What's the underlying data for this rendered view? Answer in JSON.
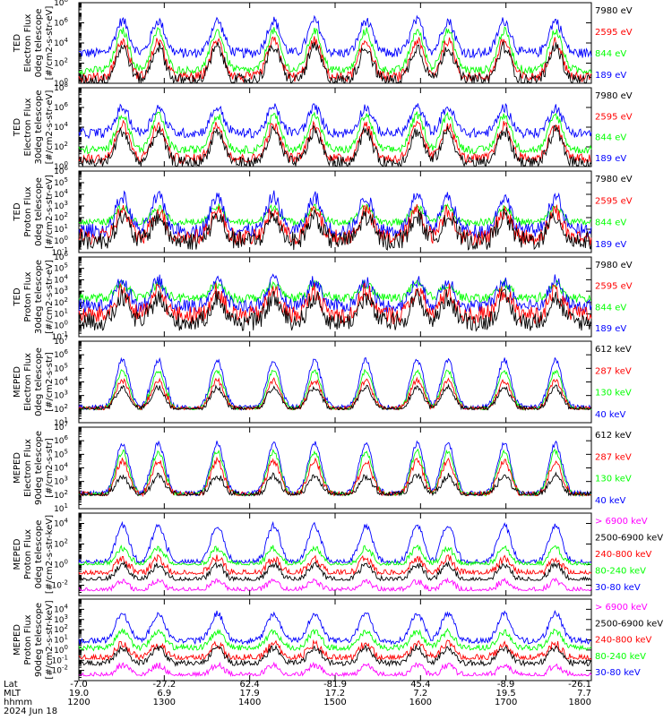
{
  "colors": {
    "blue": "#0000ff",
    "red": "#ff0000",
    "green": "#00ff00",
    "black": "#000000",
    "magenta": "#ff00ff"
  },
  "chart_data": [
    {
      "type": "line",
      "ylabel": [
        "TED",
        "Electron Flux",
        "0deg telescope",
        "[#/cm2-s-str-eV]"
      ],
      "log_scale": true,
      "ylim_exp": [
        0,
        8
      ],
      "tick_exps": [
        0,
        2,
        4,
        6,
        8
      ],
      "legend": [
        {
          "label": "7980 eV",
          "color": "black"
        },
        {
          "label": "2595 eV",
          "color": "red"
        },
        {
          "label": "844 eV",
          "color": "green"
        },
        {
          "label": "189 eV",
          "color": "blue"
        }
      ],
      "series": [
        {
          "color": "blue",
          "base": 3.0,
          "peak": 6.2,
          "noise": 0.5,
          "floor": 0
        },
        {
          "color": "green",
          "base": 1.3,
          "peak": 5.2,
          "noise": 0.4,
          "floor": 0
        },
        {
          "color": "red",
          "base": 0.6,
          "peak": 4.2,
          "noise": 0.5,
          "floor": 0
        },
        {
          "color": "black",
          "base": 0.3,
          "peak": 3.6,
          "noise": 0.6,
          "floor": 0
        }
      ]
    },
    {
      "type": "line",
      "ylabel": [
        "TED",
        "Electron Flux",
        "30deg telescope",
        "[#/cm2-s-str-eV]"
      ],
      "log_scale": true,
      "ylim_exp": [
        0,
        8
      ],
      "tick_exps": [
        0,
        2,
        4,
        6,
        8
      ],
      "legend": [
        {
          "label": "7980 eV",
          "color": "black"
        },
        {
          "label": "2595 eV",
          "color": "red"
        },
        {
          "label": "844 eV",
          "color": "green"
        },
        {
          "label": "189 eV",
          "color": "blue"
        }
      ],
      "series": [
        {
          "color": "blue",
          "base": 3.4,
          "peak": 6.0,
          "noise": 0.5,
          "floor": 0
        },
        {
          "color": "green",
          "base": 1.7,
          "peak": 5.2,
          "noise": 0.4,
          "floor": 0
        },
        {
          "color": "red",
          "base": 0.8,
          "peak": 4.2,
          "noise": 0.5,
          "floor": 0
        },
        {
          "color": "black",
          "base": 0.4,
          "peak": 3.6,
          "noise": 0.6,
          "floor": 0
        }
      ]
    },
    {
      "type": "line",
      "ylabel": [
        "TED",
        "Proton Flux",
        "0deg telescope",
        "[#/cm2-s-str-eV]"
      ],
      "log_scale": true,
      "ylim_exp": [
        -1,
        6
      ],
      "tick_exps": [
        -1,
        0,
        1,
        2,
        3,
        4,
        5,
        6
      ],
      "legend": [
        {
          "label": "7980 eV",
          "color": "black"
        },
        {
          "label": "2595 eV",
          "color": "red"
        },
        {
          "label": "844 eV",
          "color": "green"
        },
        {
          "label": "189 eV",
          "color": "blue"
        }
      ],
      "series": [
        {
          "color": "green",
          "base": 1.6,
          "peak": 2.9,
          "noise": 0.3,
          "floor": 0.9
        },
        {
          "color": "blue",
          "base": 0.9,
          "peak": 3.8,
          "noise": 0.6,
          "floor": 0.2
        },
        {
          "color": "red",
          "base": 0.3,
          "peak": 2.6,
          "noise": 0.7,
          "floor": -0.5
        },
        {
          "color": "black",
          "base": 0.0,
          "peak": 2.1,
          "noise": 0.8,
          "floor": -0.9
        }
      ]
    },
    {
      "type": "line",
      "ylabel": [
        "TED",
        "Proton Flux",
        "30deg telescope",
        "[#/cm2-s-str-eV]"
      ],
      "log_scale": true,
      "ylim_exp": [
        -1,
        6
      ],
      "tick_exps": [
        -1,
        0,
        1,
        2,
        3,
        4,
        5,
        6
      ],
      "legend": [
        {
          "label": "7980 eV",
          "color": "black"
        },
        {
          "label": "2595 eV",
          "color": "red"
        },
        {
          "label": "844 eV",
          "color": "green"
        },
        {
          "label": "189 eV",
          "color": "blue"
        }
      ],
      "series": [
        {
          "color": "green",
          "base": 2.4,
          "peak": 3.6,
          "noise": 0.4,
          "floor": 1.0
        },
        {
          "color": "blue",
          "base": 1.7,
          "peak": 3.9,
          "noise": 0.6,
          "floor": 0.5
        },
        {
          "color": "red",
          "base": 0.9,
          "peak": 3.0,
          "noise": 0.8,
          "floor": -0.4
        },
        {
          "color": "black",
          "base": 0.3,
          "peak": 2.4,
          "noise": 0.8,
          "floor": -0.9
        }
      ]
    },
    {
      "type": "line",
      "ylabel": [
        "MEPED",
        "Electron Flux",
        "0deg telescope",
        "[#/cm2-s-str]"
      ],
      "log_scale": true,
      "ylim_exp": [
        1,
        7
      ],
      "tick_exps": [
        1,
        2,
        3,
        4,
        5,
        6,
        7
      ],
      "legend": [
        {
          "label": "612 keV",
          "color": "black"
        },
        {
          "label": "287 keV",
          "color": "red"
        },
        {
          "label": "130 keV",
          "color": "green"
        },
        {
          "label": "40 keV",
          "color": "blue"
        }
      ],
      "series": [
        {
          "color": "blue",
          "base": 2.1,
          "peak": 5.6,
          "noise": 0.2,
          "floor": 2.0
        },
        {
          "color": "green",
          "base": 2.0,
          "peak": 4.8,
          "noise": 0.15,
          "floor": 2.0
        },
        {
          "color": "red",
          "base": 2.0,
          "peak": 4.1,
          "noise": 0.2,
          "floor": 2.0
        },
        {
          "color": "black",
          "base": 2.0,
          "peak": 3.6,
          "noise": 0.2,
          "floor": 2.0
        }
      ]
    },
    {
      "type": "line",
      "ylabel": [
        "MEPED",
        "Electron Flux",
        "90deg telescope",
        "[#/cm2-s-str]"
      ],
      "log_scale": true,
      "ylim_exp": [
        1,
        7
      ],
      "tick_exps": [
        1,
        2,
        3,
        4,
        5,
        6,
        7
      ],
      "legend": [
        {
          "label": "612 keV",
          "color": "black"
        },
        {
          "label": "287 keV",
          "color": "red"
        },
        {
          "label": "130 keV",
          "color": "green"
        },
        {
          "label": "40 keV",
          "color": "blue"
        }
      ],
      "series": [
        {
          "color": "blue",
          "base": 2.1,
          "peak": 5.8,
          "noise": 0.2,
          "floor": 2.0
        },
        {
          "color": "green",
          "base": 2.0,
          "peak": 5.2,
          "noise": 0.2,
          "floor": 2.0
        },
        {
          "color": "red",
          "base": 2.0,
          "peak": 4.5,
          "noise": 0.25,
          "floor": 2.0
        },
        {
          "color": "black",
          "base": 2.0,
          "peak": 3.4,
          "noise": 0.25,
          "floor": 2.0
        }
      ]
    },
    {
      "type": "line",
      "ylabel": [
        "MEPED",
        "Proton Flux",
        "0deg telescope",
        "[#/cm2-s-str-keV]"
      ],
      "log_scale": true,
      "ylim_exp": [
        -3,
        5
      ],
      "tick_exps": [
        -2,
        0,
        2,
        4
      ],
      "legend": [
        {
          "label": "> 6900 keV",
          "color": "magenta"
        },
        {
          "label": "2500-6900 keV",
          "color": "black"
        },
        {
          "label": "240-800 keV",
          "color": "red"
        },
        {
          "label": "80-240 keV",
          "color": "green"
        },
        {
          "label": "30-80 keV",
          "color": "blue"
        }
      ],
      "series": [
        {
          "color": "blue",
          "base": 0.2,
          "peak": 3.8,
          "noise": 0.3,
          "floor": 0.2
        },
        {
          "color": "green",
          "base": 0.0,
          "peak": 1.6,
          "noise": 0.3,
          "floor": 0.0
        },
        {
          "color": "red",
          "base": -0.9,
          "peak": 0.6,
          "noise": 0.4,
          "floor": -0.9
        },
        {
          "color": "black",
          "base": -1.5,
          "peak": 0.0,
          "noise": 0.3,
          "floor": -1.5
        },
        {
          "color": "magenta",
          "base": -2.5,
          "peak": -1.6,
          "noise": 0.3,
          "floor": -2.5
        }
      ]
    },
    {
      "type": "line",
      "ylabel": [
        "MEPED",
        "Proton Flux",
        "90deg telescope",
        "[#/cm2-s-str-keV]"
      ],
      "log_scale": true,
      "ylim_exp": [
        -3,
        5
      ],
      "tick_exps": [
        -2,
        -1,
        0,
        1,
        2,
        3,
        4
      ],
      "legend": [
        {
          "label": "> 6900 keV",
          "color": "magenta"
        },
        {
          "label": "2500-6900 keV",
          "color": "black"
        },
        {
          "label": "240-800 keV",
          "color": "red"
        },
        {
          "label": "80-240 keV",
          "color": "green"
        },
        {
          "label": "30-80 keV",
          "color": "blue"
        }
      ],
      "series": [
        {
          "color": "blue",
          "base": 0.9,
          "peak": 3.6,
          "noise": 0.3,
          "floor": 0.5
        },
        {
          "color": "green",
          "base": 0.2,
          "peak": 1.8,
          "noise": 0.3,
          "floor": 0.0
        },
        {
          "color": "red",
          "base": -0.8,
          "peak": 0.6,
          "noise": 0.4,
          "floor": -0.9
        },
        {
          "color": "black",
          "base": -1.3,
          "peak": 0.2,
          "noise": 0.3,
          "floor": -1.5
        },
        {
          "color": "magenta",
          "base": -2.5,
          "peak": -1.5,
          "noise": 0.3,
          "floor": -2.5
        }
      ]
    }
  ],
  "x_axis": {
    "row_labels": [
      "Lat",
      "MLT",
      "hhmm"
    ],
    "date": "2024 Jun 18",
    "xlim_hhmm": [
      "1200",
      "1800"
    ],
    "ticks": [
      {
        "lat": "-7.0",
        "mlt": "19.0",
        "hhmm": "1200"
      },
      {
        "lat": "-27.2",
        "mlt": "6.9",
        "hhmm": "1300"
      },
      {
        "lat": "62.4",
        "mlt": "17.9",
        "hhmm": "1400"
      },
      {
        "lat": "-81.9",
        "mlt": "17.2",
        "hhmm": "1500"
      },
      {
        "lat": "45.4",
        "mlt": "7.2",
        "hhmm": "1600"
      },
      {
        "lat": "-8.9",
        "mlt": "19.5",
        "hhmm": "1700"
      },
      {
        "lat": "-26.1",
        "mlt": "7.7",
        "hhmm": "1800"
      }
    ]
  },
  "activity_peaks_hhmm_fraction": [
    0.085,
    0.155,
    0.27,
    0.38,
    0.46,
    0.56,
    0.66,
    0.72,
    0.83,
    0.93
  ]
}
